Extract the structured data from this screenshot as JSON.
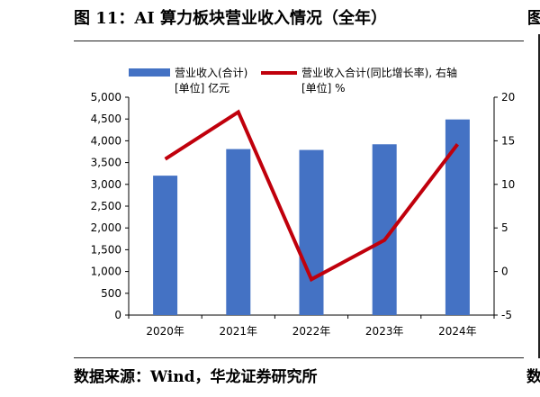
{
  "header": {
    "title": "图 11：AI 算力板块营业收入情况（全年）",
    "title_edge": "图"
  },
  "footer": {
    "source": "数据来源：Wind，华龙证券研究所",
    "source_edge": "数"
  },
  "chart_data": {
    "type": "bar",
    "categories": [
      "2020年",
      "2021年",
      "2022年",
      "2023年",
      "2024年"
    ],
    "series": [
      {
        "name": "营业收入(合计)",
        "legend_line2": "[单位] 亿元",
        "kind": "bar",
        "axis": "left",
        "color": "#4472c4",
        "values": [
          3200,
          3810,
          3790,
          3920,
          4490
        ]
      },
      {
        "name": "营业收入合计(同比增长率), 右轴",
        "legend_line2": "[单位] %",
        "kind": "line",
        "axis": "right",
        "color": "#c0000c",
        "values": [
          12.9,
          18.3,
          -0.9,
          3.6,
          14.6
        ]
      }
    ],
    "y_left": {
      "min": 0,
      "max": 5000,
      "step": 500,
      "tick_labels": [
        "0",
        "500",
        "1,000",
        "1,500",
        "2,000",
        "2,500",
        "3,000",
        "3,500",
        "4,000",
        "4,500",
        "5,000"
      ]
    },
    "y_right": {
      "min": -5,
      "max": 20,
      "step": 5,
      "tick_labels": [
        "-5",
        "0",
        "5",
        "10",
        "15",
        "20"
      ]
    },
    "grid": false,
    "legend_position": "top"
  }
}
